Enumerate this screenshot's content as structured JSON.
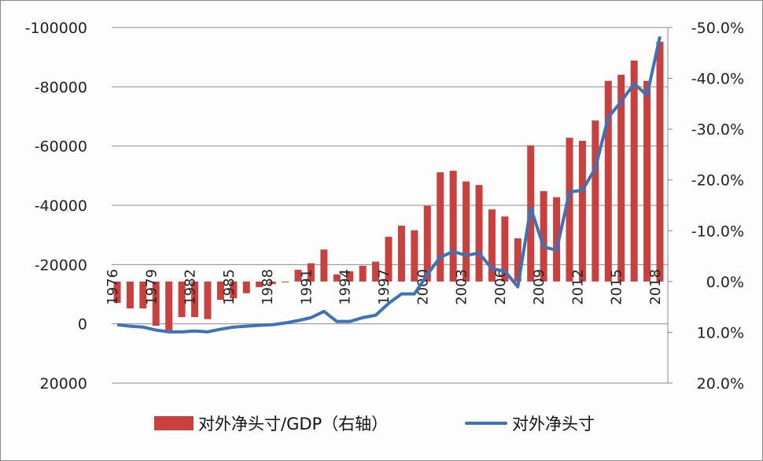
{
  "chart_data": {
    "type": "bar+line",
    "categories": [
      1976,
      1977,
      1978,
      1979,
      1980,
      1981,
      1982,
      1983,
      1984,
      1985,
      1986,
      1987,
      1988,
      1989,
      1990,
      1991,
      1992,
      1993,
      1994,
      1995,
      1996,
      1997,
      1998,
      1999,
      2000,
      2001,
      2002,
      2003,
      2004,
      2005,
      2006,
      2007,
      2008,
      2009,
      2010,
      2011,
      2012,
      2013,
      2014,
      2015,
      2016,
      2017,
      2018
    ],
    "x_tick_labels": [
      "1976",
      "1979",
      "1982",
      "1985",
      "1988",
      "1991",
      "1994",
      "1997",
      "2000",
      "2003",
      "2006",
      "2009",
      "2012",
      "2015",
      "2018"
    ],
    "left_axis": {
      "ylim": [
        20000,
        -100000
      ],
      "inverted": true,
      "ticks": [
        "-100000",
        "-80000",
        "-60000",
        "-40000",
        "-20000",
        "0",
        "20000"
      ],
      "tick_values": [
        -100000,
        -80000,
        -60000,
        -40000,
        -20000,
        0,
        20000
      ]
    },
    "right_axis": {
      "ylim": [
        20,
        -50
      ],
      "inverted": true,
      "ticks": [
        "-50.0%",
        "-40.0%",
        "-30.0%",
        "-20.0%",
        "-10.0%",
        "0.0%",
        "10.0%",
        "20.0%"
      ],
      "tick_values": [
        -50,
        -40,
        -30,
        -20,
        -10,
        0,
        10,
        20
      ]
    },
    "grid": true,
    "legend_position": "bottom",
    "series": [
      {
        "name": "对外净头寸/GDP（右轴）",
        "type": "bar",
        "axis": "right",
        "color": "#c8413f",
        "values": [
          4.2,
          5.3,
          5.3,
          8.7,
          9.6,
          7.0,
          7.0,
          7.4,
          3.6,
          3.3,
          2.3,
          1.1,
          0.5,
          0.1,
          -2.3,
          -3.6,
          -6.3,
          -1.4,
          -2.0,
          -3.1,
          -3.9,
          -8.8,
          -11.0,
          -10.1,
          -14.9,
          -21.5,
          -21.8,
          -19.7,
          -19.0,
          -14.2,
          -12.8,
          -8.5,
          -26.8,
          -17.8,
          -16.6,
          -28.3,
          -27.7,
          -31.7,
          -39.5,
          -40.7,
          -43.5,
          -39.5,
          -47.2
        ]
      },
      {
        "name": "对外净头寸",
        "type": "line",
        "axis": "left",
        "color": "#3f72b5",
        "values": [
          300,
          800,
          1100,
          2100,
          2700,
          2700,
          2400,
          2700,
          1800,
          1100,
          800,
          500,
          300,
          -300,
          -1100,
          -2100,
          -4200,
          -800,
          -800,
          -2100,
          -2900,
          -6900,
          -10100,
          -10100,
          -16700,
          -22500,
          -24400,
          -23100,
          -23900,
          -18600,
          -17800,
          -12500,
          -39200,
          -25900,
          -24900,
          -44500,
          -45100,
          -52500,
          -69700,
          -75000,
          -81100,
          -77100,
          -97000
        ]
      }
    ]
  },
  "legend": {
    "bar_label": "对外净头寸/GDP（右轴）",
    "line_label": "对外净头寸"
  }
}
